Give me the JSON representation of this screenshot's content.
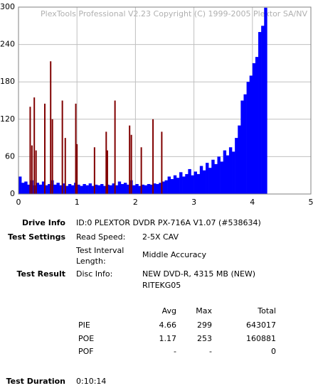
{
  "chart_data": {
    "type": "bar",
    "watermark": "PlexTools Professional V2.23 Copyright (C) 1999-2005 Plextor SA/NV",
    "xlim": [
      0,
      5
    ],
    "xticks": [
      0,
      1,
      2,
      3,
      4,
      5
    ],
    "ylim": [
      0,
      300
    ],
    "yticks": [
      0,
      60,
      120,
      180,
      240,
      300
    ],
    "grid": true,
    "series": [
      {
        "color": "#0000ff",
        "style": "bars",
        "x": [
          0,
          0.05,
          0.1,
          0.15,
          0.2,
          0.25,
          0.3,
          0.35,
          0.4,
          0.45,
          0.5,
          0.55,
          0.6,
          0.65,
          0.7,
          0.75,
          0.8,
          0.85,
          0.9,
          0.95,
          1,
          1.05,
          1.1,
          1.15,
          1.2,
          1.25,
          1.3,
          1.35,
          1.4,
          1.45,
          1.5,
          1.55,
          1.6,
          1.65,
          1.7,
          1.75,
          1.8,
          1.85,
          1.9,
          1.95,
          2,
          2.05,
          2.1,
          2.15,
          2.2,
          2.25,
          2.3,
          2.35,
          2.4,
          2.45,
          2.5,
          2.55,
          2.6,
          2.65,
          2.7,
          2.75,
          2.8,
          2.85,
          2.9,
          2.95,
          3,
          3.05,
          3.1,
          3.15,
          3.2,
          3.25,
          3.3,
          3.35,
          3.4,
          3.45,
          3.5,
          3.55,
          3.6,
          3.65,
          3.7,
          3.75,
          3.8,
          3.85,
          3.9,
          3.95,
          4,
          4.05,
          4.1,
          4.15,
          4.2
        ],
        "values": [
          28,
          18,
          20,
          15,
          22,
          14,
          18,
          15,
          20,
          14,
          16,
          22,
          15,
          18,
          14,
          17,
          13,
          16,
          14,
          18,
          15,
          13,
          16,
          14,
          17,
          13,
          15,
          14,
          16,
          13,
          15,
          14,
          17,
          14,
          20,
          16,
          18,
          15,
          22,
          14,
          16,
          13,
          15,
          14,
          16,
          15,
          17,
          16,
          18,
          20,
          22,
          28,
          24,
          30,
          26,
          35,
          28,
          32,
          40,
          30,
          36,
          32,
          45,
          38,
          50,
          42,
          55,
          48,
          60,
          52,
          70,
          62,
          75,
          68,
          90,
          110,
          150,
          160,
          180,
          190,
          210,
          220,
          260,
          270,
          299
        ]
      },
      {
        "color": "#800000",
        "style": "spikes",
        "x": [
          0.2,
          0.23,
          0.27,
          0.3,
          0.45,
          0.55,
          0.58,
          0.75,
          0.8,
          0.98,
          1.0,
          1.3,
          1.5,
          1.52,
          1.65,
          1.9,
          1.93,
          2.1,
          2.3,
          2.45
        ],
        "values": [
          140,
          78,
          155,
          70,
          145,
          213,
          120,
          150,
          90,
          145,
          80,
          75,
          100,
          70,
          150,
          110,
          95,
          75,
          120,
          100
        ]
      }
    ]
  },
  "report": {
    "drive_info": {
      "label": "Drive Info",
      "value": "ID:0 PLEXTOR DVDR PX-716A V1.07 (#538634)"
    },
    "test_settings": {
      "label": "Test Settings",
      "items": [
        [
          "Read Speed:",
          "2-5X CAV"
        ],
        [
          "Test Interval Length:",
          "Middle Accuracy"
        ]
      ]
    },
    "test_result": {
      "label": "Test Result",
      "key": "Disc Info:",
      "lines": [
        "NEW DVD-R, 4315 MB (NEW)",
        "RITEKG05"
      ]
    },
    "table": {
      "header": [
        "Avg",
        "Max",
        "Total"
      ],
      "rows": [
        [
          "PIE",
          "4.66",
          "299",
          "643017"
        ],
        [
          "POE",
          "1.17",
          "253",
          "160881"
        ],
        [
          "POF",
          "-",
          "-",
          "0"
        ]
      ]
    },
    "test_duration": {
      "label": "Test Duration",
      "value": "0:10:14"
    }
  }
}
